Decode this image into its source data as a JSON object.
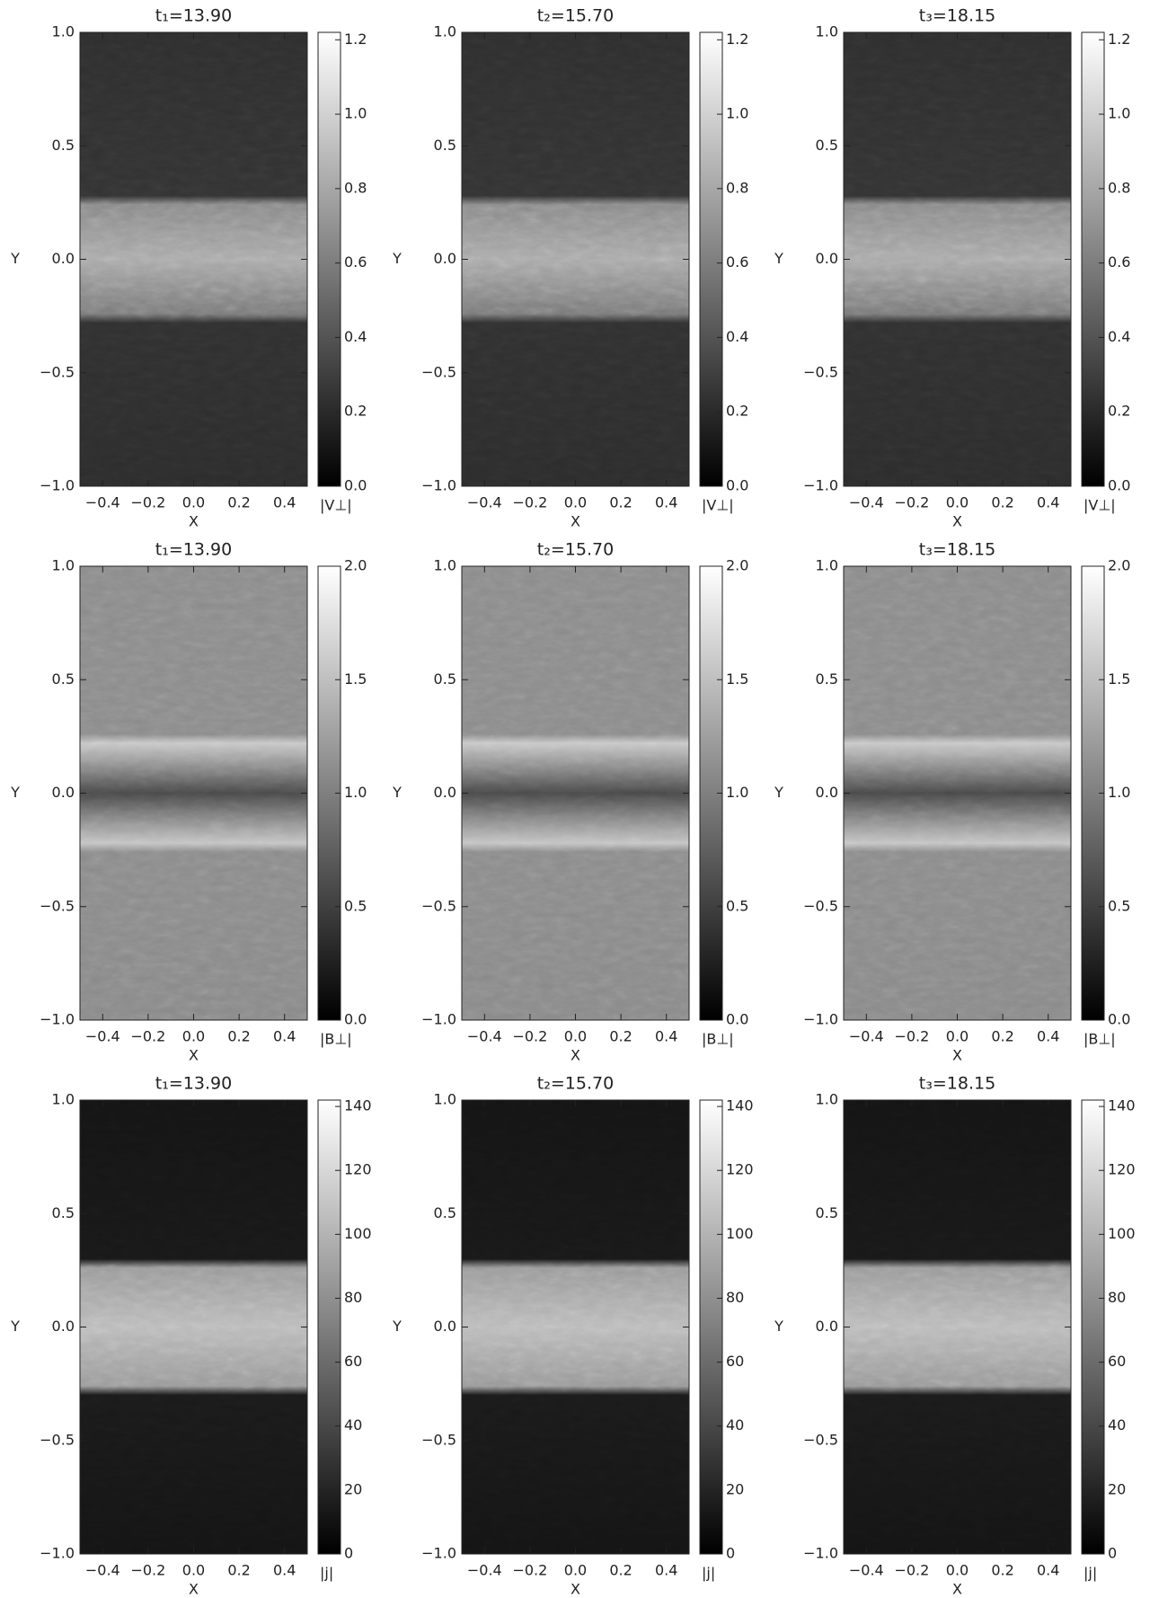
{
  "chart_data": [
    {
      "type": "heatmap",
      "title": "t₁=13.90",
      "xlabel": "X",
      "ylabel": "Y",
      "colorbar_label": "|V⊥|",
      "xlim": [
        -0.5,
        0.5
      ],
      "ylim": [
        -1,
        1
      ],
      "xticks": [
        {
          "value": -0.4,
          "label": "−0.4"
        },
        {
          "value": -0.2,
          "label": "−0.2"
        },
        {
          "value": 0,
          "label": "0.0"
        },
        {
          "value": 0.2,
          "label": "0.2"
        },
        {
          "value": 0.4,
          "label": "0.4"
        }
      ],
      "yticks": [
        {
          "value": -1,
          "label": "−1.0"
        },
        {
          "value": -0.5,
          "label": "−0.5"
        },
        {
          "value": 0,
          "label": "0.0"
        },
        {
          "value": 0.5,
          "label": "0.5"
        },
        {
          "value": 1,
          "label": "1.0"
        }
      ],
      "clim": [
        0,
        1.22
      ],
      "cticks": [
        {
          "value": 0,
          "label": "0.0"
        },
        0.2,
        0.4,
        0.6,
        0.8,
        {
          "value": 1,
          "label": "1.0"
        },
        1.2
      ]
    },
    {
      "type": "heatmap",
      "title": "t₂=15.70",
      "xlabel": "X",
      "ylabel": "Y",
      "colorbar_label": "|V⊥|",
      "xlim": [
        -0.5,
        0.5
      ],
      "ylim": [
        -1,
        1
      ],
      "xticks": [
        {
          "value": -0.4,
          "label": "−0.4"
        },
        {
          "value": -0.2,
          "label": "−0.2"
        },
        {
          "value": 0,
          "label": "0.0"
        },
        {
          "value": 0.2,
          "label": "0.2"
        },
        {
          "value": 0.4,
          "label": "0.4"
        }
      ],
      "yticks": [
        {
          "value": -1,
          "label": "−1.0"
        },
        {
          "value": -0.5,
          "label": "−0.5"
        },
        {
          "value": 0,
          "label": "0.0"
        },
        {
          "value": 0.5,
          "label": "0.5"
        },
        {
          "value": 1,
          "label": "1.0"
        }
      ],
      "clim": [
        0,
        1.22
      ],
      "cticks": [
        {
          "value": 0,
          "label": "0.0"
        },
        0.2,
        0.4,
        0.6,
        0.8,
        {
          "value": 1,
          "label": "1.0"
        },
        1.2
      ]
    },
    {
      "type": "heatmap",
      "title": "t₃=18.15",
      "xlabel": "X",
      "ylabel": "Y",
      "colorbar_label": "|V⊥|",
      "xlim": [
        -0.5,
        0.5
      ],
      "ylim": [
        -1,
        1
      ],
      "xticks": [
        {
          "value": -0.4,
          "label": "−0.4"
        },
        {
          "value": -0.2,
          "label": "−0.2"
        },
        {
          "value": 0,
          "label": "0.0"
        },
        {
          "value": 0.2,
          "label": "0.2"
        },
        {
          "value": 0.4,
          "label": "0.4"
        }
      ],
      "yticks": [
        {
          "value": -1,
          "label": "−1.0"
        },
        {
          "value": -0.5,
          "label": "−0.5"
        },
        {
          "value": 0,
          "label": "0.0"
        },
        {
          "value": 0.5,
          "label": "0.5"
        },
        {
          "value": 1,
          "label": "1.0"
        }
      ],
      "clim": [
        0,
        1.22
      ],
      "cticks": [
        {
          "value": 0,
          "label": "0.0"
        },
        0.2,
        0.4,
        0.6,
        0.8,
        {
          "value": 1,
          "label": "1.0"
        },
        1.2
      ]
    },
    {
      "type": "heatmap",
      "title": "t₁=13.90",
      "xlabel": "X",
      "ylabel": "Y",
      "colorbar_label": "|B⊥|",
      "xlim": [
        -0.5,
        0.5
      ],
      "ylim": [
        -1,
        1
      ],
      "xticks": [
        {
          "value": -0.4,
          "label": "−0.4"
        },
        {
          "value": -0.2,
          "label": "−0.2"
        },
        {
          "value": 0,
          "label": "0.0"
        },
        {
          "value": 0.2,
          "label": "0.2"
        },
        {
          "value": 0.4,
          "label": "0.4"
        }
      ],
      "yticks": [
        {
          "value": -1,
          "label": "−1.0"
        },
        {
          "value": -0.5,
          "label": "−0.5"
        },
        {
          "value": 0,
          "label": "0.0"
        },
        {
          "value": 0.5,
          "label": "0.5"
        },
        {
          "value": 1,
          "label": "1.0"
        }
      ],
      "clim": [
        0,
        2
      ],
      "cticks": [
        {
          "value": 0,
          "label": "0.0"
        },
        0.5,
        {
          "value": 1,
          "label": "1.0"
        },
        1.5,
        {
          "value": 2,
          "label": "2.0"
        }
      ]
    },
    {
      "type": "heatmap",
      "title": "t₂=15.70",
      "xlabel": "X",
      "ylabel": "Y",
      "colorbar_label": "|B⊥|",
      "xlim": [
        -0.5,
        0.5
      ],
      "ylim": [
        -1,
        1
      ],
      "xticks": [
        {
          "value": -0.4,
          "label": "−0.4"
        },
        {
          "value": -0.2,
          "label": "−0.2"
        },
        {
          "value": 0,
          "label": "0.0"
        },
        {
          "value": 0.2,
          "label": "0.2"
        },
        {
          "value": 0.4,
          "label": "0.4"
        }
      ],
      "yticks": [
        {
          "value": -1,
          "label": "−1.0"
        },
        {
          "value": -0.5,
          "label": "−0.5"
        },
        {
          "value": 0,
          "label": "0.0"
        },
        {
          "value": 0.5,
          "label": "0.5"
        },
        {
          "value": 1,
          "label": "1.0"
        }
      ],
      "clim": [
        0,
        2
      ],
      "cticks": [
        {
          "value": 0,
          "label": "0.0"
        },
        0.5,
        {
          "value": 1,
          "label": "1.0"
        },
        1.5,
        {
          "value": 2,
          "label": "2.0"
        }
      ]
    },
    {
      "type": "heatmap",
      "title": "t₃=18.15",
      "xlabel": "X",
      "ylabel": "Y",
      "colorbar_label": "|B⊥|",
      "xlim": [
        -0.5,
        0.5
      ],
      "ylim": [
        -1,
        1
      ],
      "xticks": [
        {
          "value": -0.4,
          "label": "−0.4"
        },
        {
          "value": -0.2,
          "label": "−0.2"
        },
        {
          "value": 0,
          "label": "0.0"
        },
        {
          "value": 0.2,
          "label": "0.2"
        },
        {
          "value": 0.4,
          "label": "0.4"
        }
      ],
      "yticks": [
        {
          "value": -1,
          "label": "−1.0"
        },
        {
          "value": -0.5,
          "label": "−0.5"
        },
        {
          "value": 0,
          "label": "0.0"
        },
        {
          "value": 0.5,
          "label": "0.5"
        },
        {
          "value": 1,
          "label": "1.0"
        }
      ],
      "clim": [
        0,
        2
      ],
      "cticks": [
        {
          "value": 0,
          "label": "0.0"
        },
        0.5,
        {
          "value": 1,
          "label": "1.0"
        },
        1.5,
        {
          "value": 2,
          "label": "2.0"
        }
      ]
    },
    {
      "type": "heatmap",
      "title": "t₁=13.90",
      "xlabel": "X",
      "ylabel": "Y",
      "colorbar_label": "|j|",
      "xlim": [
        -0.5,
        0.5
      ],
      "ylim": [
        -1,
        1
      ],
      "xticks": [
        {
          "value": -0.4,
          "label": "−0.4"
        },
        {
          "value": -0.2,
          "label": "−0.2"
        },
        {
          "value": 0,
          "label": "0.0"
        },
        {
          "value": 0.2,
          "label": "0.2"
        },
        {
          "value": 0.4,
          "label": "0.4"
        }
      ],
      "yticks": [
        {
          "value": -1,
          "label": "−1.0"
        },
        {
          "value": -0.5,
          "label": "−0.5"
        },
        {
          "value": 0,
          "label": "0.0"
        },
        {
          "value": 0.5,
          "label": "0.5"
        },
        {
          "value": 1,
          "label": "1.0"
        }
      ],
      "clim": [
        0,
        142
      ],
      "cticks": [
        0,
        20,
        40,
        60,
        80,
        100,
        120,
        140
      ]
    },
    {
      "type": "heatmap",
      "title": "t₂=15.70",
      "xlabel": "X",
      "ylabel": "Y",
      "colorbar_label": "|j|",
      "xlim": [
        -0.5,
        0.5
      ],
      "ylim": [
        -1,
        1
      ],
      "xticks": [
        {
          "value": -0.4,
          "label": "−0.4"
        },
        {
          "value": -0.2,
          "label": "−0.2"
        },
        {
          "value": 0,
          "label": "0.0"
        },
        {
          "value": 0.2,
          "label": "0.2"
        },
        {
          "value": 0.4,
          "label": "0.4"
        }
      ],
      "yticks": [
        {
          "value": -1,
          "label": "−1.0"
        },
        {
          "value": -0.5,
          "label": "−0.5"
        },
        {
          "value": 0,
          "label": "0.0"
        },
        {
          "value": 0.5,
          "label": "0.5"
        },
        {
          "value": 1,
          "label": "1.0"
        }
      ],
      "clim": [
        0,
        142
      ],
      "cticks": [
        0,
        20,
        40,
        60,
        80,
        100,
        120,
        140
      ]
    },
    {
      "type": "heatmap",
      "title": "t₃=18.15",
      "xlabel": "X",
      "ylabel": "Y",
      "colorbar_label": "|j|",
      "xlim": [
        -0.5,
        0.5
      ],
      "ylim": [
        -1,
        1
      ],
      "xticks": [
        {
          "value": -0.4,
          "label": "−0.4"
        },
        {
          "value": -0.2,
          "label": "−0.2"
        },
        {
          "value": 0,
          "label": "0.0"
        },
        {
          "value": 0.2,
          "label": "0.2"
        },
        {
          "value": 0.4,
          "label": "0.4"
        }
      ],
      "yticks": [
        {
          "value": -1,
          "label": "−1.0"
        },
        {
          "value": -0.5,
          "label": "−0.5"
        },
        {
          "value": 0,
          "label": "0.0"
        },
        {
          "value": 0.5,
          "label": "0.5"
        },
        {
          "value": 1,
          "label": "1.0"
        }
      ],
      "clim": [
        0,
        142
      ],
      "cticks": [
        0,
        20,
        40,
        60,
        80,
        100,
        120,
        140
      ]
    }
  ]
}
